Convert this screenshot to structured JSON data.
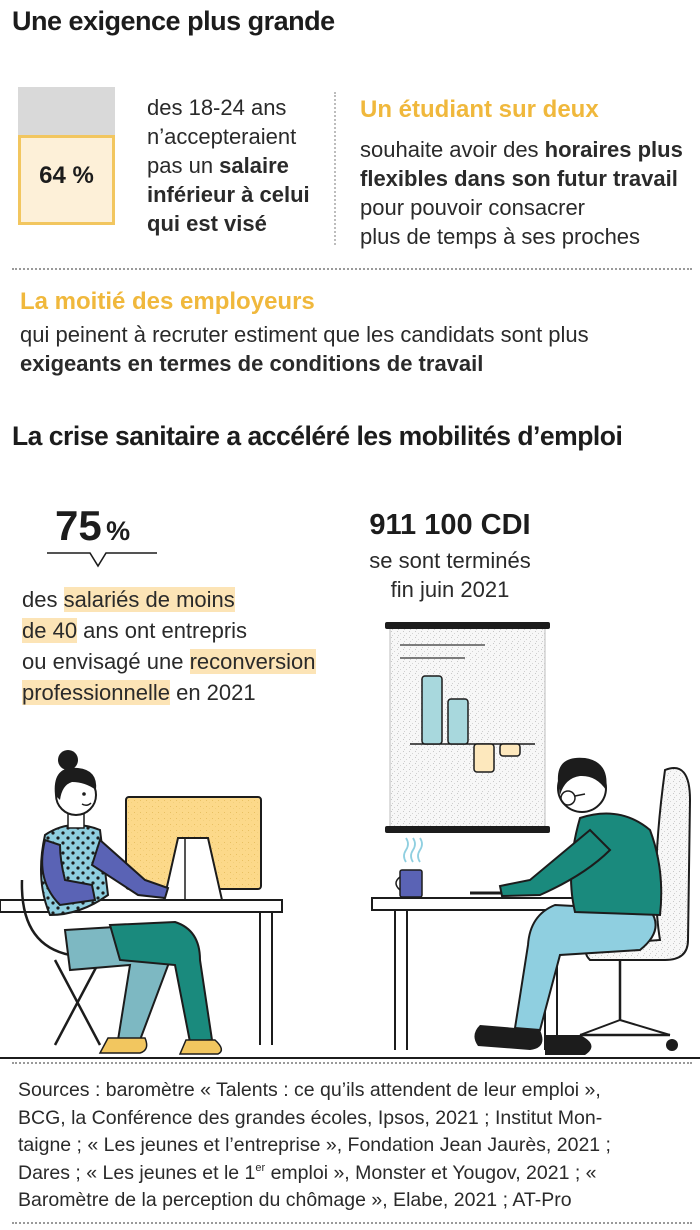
{
  "section1": {
    "title": "Une exigence plus grande",
    "stat1": {
      "percent_label": "64 %",
      "percent_value": 64,
      "line1": "des 18-24 ans",
      "line2": "n’accepteraient",
      "line3_plain": "pas un ",
      "line3_bold": "salaire",
      "line4": "inférieur à celui",
      "line5": "qui est visé"
    },
    "stat2": {
      "heading": "Un étudiant sur deux",
      "line1_plain": "souhaite avoir des ",
      "line1_bold": "horaires plus",
      "line2": "flexibles dans son futur travail",
      "line3": "pour pouvoir consacrer",
      "line4": "plus de temps à ses proches"
    },
    "stat3": {
      "heading": "La moitié des employeurs",
      "line1": "qui peinent à recruter estiment que les candidats sont plus",
      "line2": "exigeants en termes de conditions de travail"
    }
  },
  "section2": {
    "title": "La crise sanitaire a accéléré les mobilités d’emploi",
    "stat1": {
      "number": "75",
      "unit": "%",
      "l1_plain": "des ",
      "l1_hl": "salariés de moins",
      "l2_hl": "de 40",
      "l2_plain": " ans ont entrepris",
      "l3_plain": "ou envisagé une ",
      "l3_hl": "reconversion",
      "l4_hl": "professionnelle",
      "l4_plain": " en 2021"
    },
    "stat2": {
      "number": "911 100 CDI",
      "line1": "se sont terminés",
      "line2": "fin juin 2021"
    }
  },
  "sources": {
    "l1": "Sources : baromètre « Talents : ce qu’ils attendent de leur emploi »,",
    "l2": "BCG, la Conférence des grandes écoles, Ipsos, 2021 ; Institut Mon-",
    "l3": "taigne ; « Les jeunes et l’entreprise », Fondation Jean Jaurès, 2021 ;",
    "l4a": "Dares ; « Les jeunes et le 1",
    "l4sup": "er",
    "l4b": " emploi », Monster et Yougov, 2021 ; «",
    "l5": "Baromètre de la perception du chômage », Elabe, 2021 ; AT-Pro"
  },
  "colors": {
    "accent": "#f0b83c",
    "highlight": "#fce4b6",
    "teal": "#1a8a7d",
    "light_blue": "#8fcfe0",
    "monitor_yellow": "#fcd98a"
  }
}
